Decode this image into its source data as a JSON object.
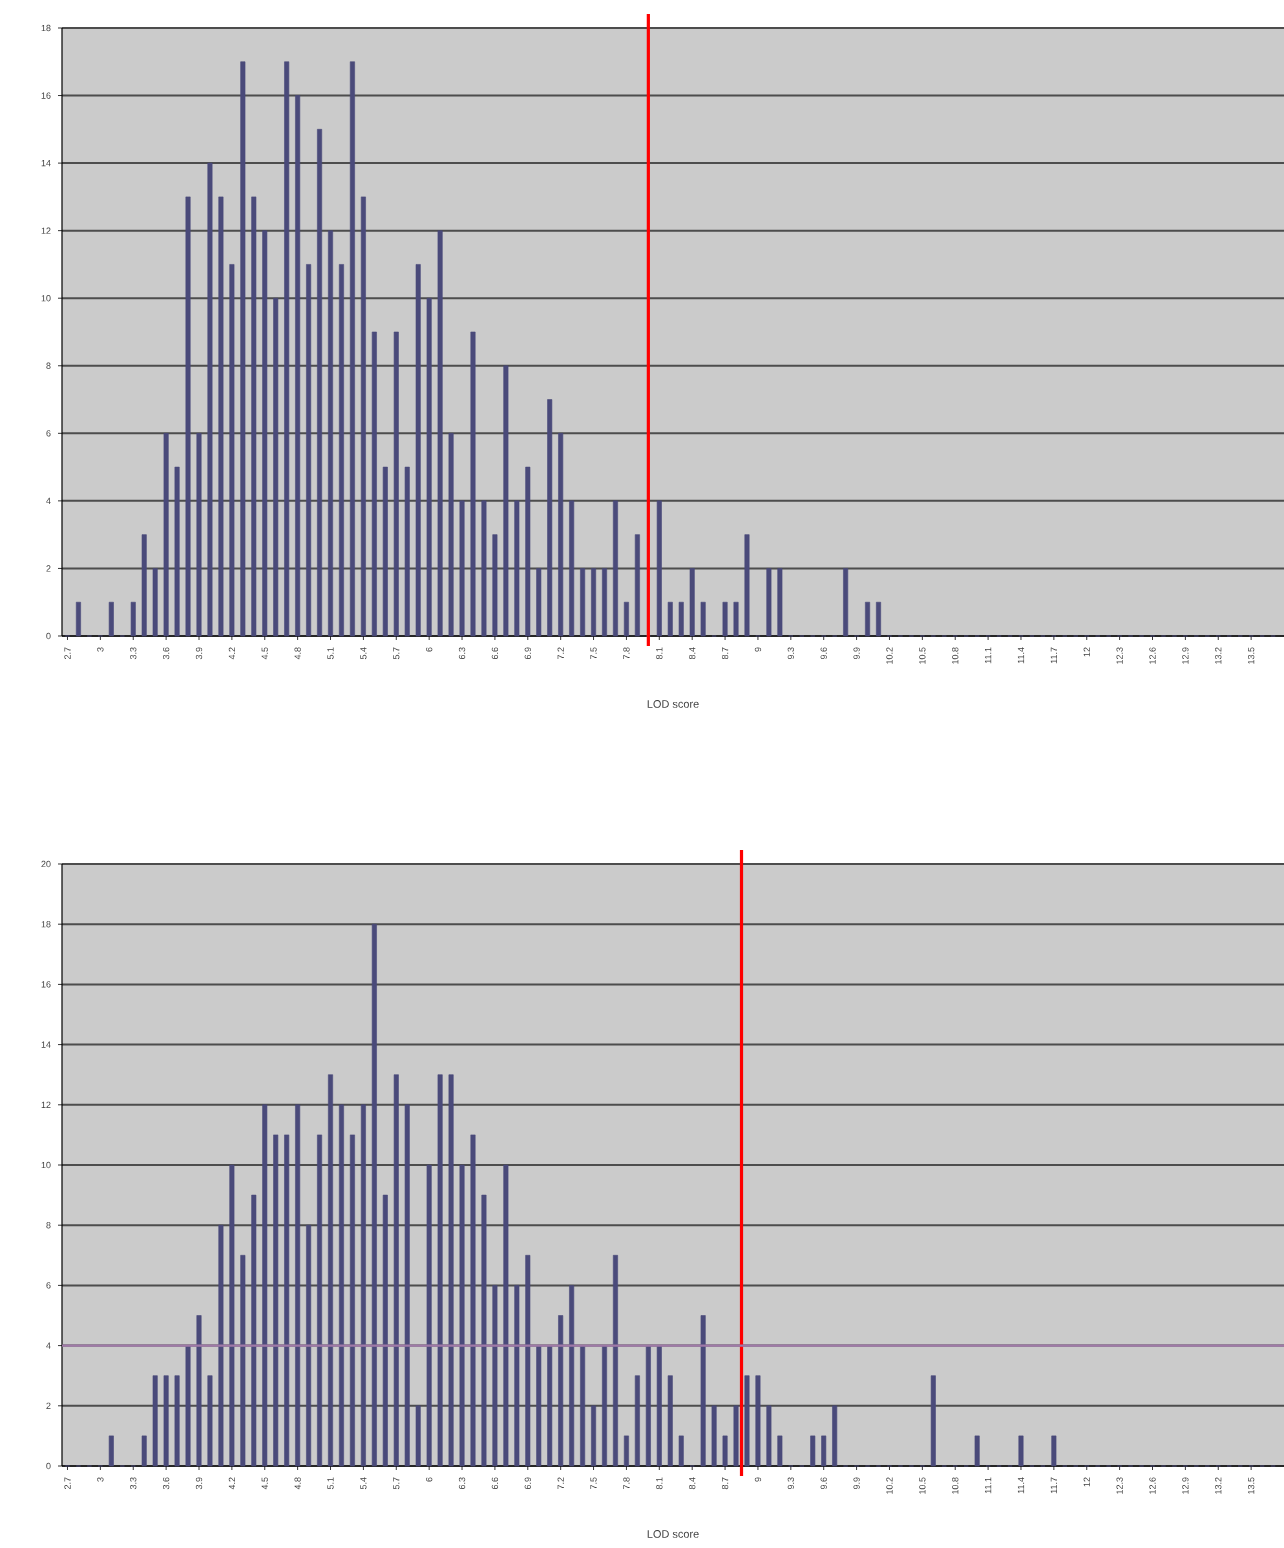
{
  "chart_data": [
    {
      "type": "bar",
      "xlabel": "LOD score",
      "x": [
        2.7,
        2.8,
        2.9,
        3,
        3.1,
        3.2,
        3.3,
        3.4,
        3.5,
        3.6,
        3.7,
        3.8,
        3.9,
        4,
        4.1,
        4.2,
        4.3,
        4.4,
        4.5,
        4.6,
        4.7,
        4.8,
        4.9,
        5,
        5.1,
        5.2,
        5.3,
        5.4,
        5.5,
        5.6,
        5.7,
        5.8,
        5.9,
        6,
        6.1,
        6.2,
        6.3,
        6.4,
        6.5,
        6.6,
        6.7,
        6.8,
        6.9,
        7,
        7.1,
        7.2,
        7.3,
        7.4,
        7.5,
        7.6,
        7.7,
        7.8,
        7.9,
        8,
        8.1,
        8.2,
        8.3,
        8.4,
        8.5,
        8.6,
        8.7,
        8.8,
        8.9,
        9,
        9.1,
        9.2,
        9.3,
        9.4,
        9.5,
        9.6,
        9.7,
        9.8,
        9.9,
        10,
        10.1,
        10.2,
        10.3,
        10.4,
        10.5,
        10.6,
        10.7,
        10.8,
        10.9,
        11,
        11.1,
        11.2,
        11.3,
        11.4,
        11.5,
        11.6,
        11.7,
        11.8,
        11.9,
        12,
        12.1,
        12.2,
        12.3,
        12.4,
        12.5,
        12.6,
        12.7,
        12.8,
        12.9,
        13,
        13.1,
        13.2,
        13.3,
        13.4,
        13.5,
        13.6,
        13.7
      ],
      "values": [
        0,
        1,
        0,
        0,
        1,
        0,
        1,
        3,
        2,
        6,
        5,
        13,
        6,
        14,
        13,
        11,
        17,
        13,
        12,
        10,
        17,
        16,
        11,
        15,
        12,
        11,
        17,
        13,
        9,
        5,
        9,
        5,
        11,
        10,
        12,
        6,
        4,
        9,
        4,
        3,
        8,
        4,
        5,
        2,
        7,
        6,
        4,
        2,
        2,
        2,
        4,
        1,
        3,
        0,
        4,
        1,
        1,
        2,
        1,
        0,
        1,
        1,
        3,
        0,
        2,
        2,
        0,
        0,
        0,
        0,
        0,
        2,
        0,
        1,
        1,
        0,
        0,
        0,
        0,
        0,
        0,
        0,
        0,
        0,
        0,
        0,
        0,
        0,
        0,
        0,
        0,
        0,
        0,
        0,
        0,
        0,
        0,
        0,
        0,
        0,
        0,
        0,
        0,
        0,
        0,
        0,
        0,
        0,
        0,
        0,
        0
      ],
      "color": "#4a4a7a",
      "xlim": [
        2.65,
        13.8
      ],
      "xticks": [
        2.7,
        3,
        3.3,
        3.6,
        3.9,
        4.2,
        4.5,
        4.8,
        5.1,
        5.4,
        5.7,
        6,
        6.3,
        6.6,
        6.9,
        7.2,
        7.5,
        7.8,
        8.1,
        8.4,
        8.7,
        9,
        9.3,
        9.6,
        9.9,
        10.2,
        10.5,
        10.8,
        11.1,
        11.4,
        11.7,
        12,
        12.3,
        12.6,
        12.9,
        13.2,
        13.5
      ],
      "ylim": [
        0,
        18
      ],
      "yticks": [
        0,
        2,
        4,
        6,
        8,
        10,
        12,
        14,
        16,
        18
      ],
      "grid": "y",
      "ref_lines": [
        {
          "axis": "x",
          "value": 8,
          "color": "#ff0000"
        }
      ]
    },
    {
      "type": "bar",
      "xlabel": "LOD score",
      "x": [
        2.7,
        2.8,
        2.9,
        3,
        3.1,
        3.2,
        3.3,
        3.4,
        3.5,
        3.6,
        3.7,
        3.8,
        3.9,
        4,
        4.1,
        4.2,
        4.3,
        4.4,
        4.5,
        4.6,
        4.7,
        4.8,
        4.9,
        5,
        5.1,
        5.2,
        5.3,
        5.4,
        5.5,
        5.6,
        5.7,
        5.8,
        5.9,
        6,
        6.1,
        6.2,
        6.3,
        6.4,
        6.5,
        6.6,
        6.7,
        6.8,
        6.9,
        7,
        7.1,
        7.2,
        7.3,
        7.4,
        7.5,
        7.6,
        7.7,
        7.8,
        7.9,
        8,
        8.1,
        8.2,
        8.3,
        8.4,
        8.5,
        8.6,
        8.7,
        8.8,
        8.9,
        9,
        9.1,
        9.2,
        9.3,
        9.4,
        9.5,
        9.6,
        9.7,
        9.8,
        9.9,
        10,
        10.1,
        10.2,
        10.3,
        10.4,
        10.5,
        10.6,
        10.7,
        10.8,
        10.9,
        11,
        11.1,
        11.2,
        11.3,
        11.4,
        11.5,
        11.6,
        11.7,
        11.8,
        11.9,
        12,
        12.1,
        12.2,
        12.3,
        12.4,
        12.5,
        12.6,
        12.7,
        12.8,
        12.9,
        13,
        13.1,
        13.2,
        13.3,
        13.4,
        13.5,
        13.6,
        13.7
      ],
      "values": [
        0,
        0,
        0,
        0,
        1,
        0,
        0,
        1,
        3,
        3,
        3,
        4,
        5,
        3,
        8,
        10,
        7,
        9,
        12,
        11,
        11,
        12,
        8,
        11,
        13,
        12,
        11,
        12,
        18,
        9,
        13,
        12,
        2,
        10,
        13,
        13,
        10,
        11,
        9,
        6,
        10,
        6,
        7,
        4,
        4,
        5,
        6,
        4,
        2,
        4,
        7,
        1,
        3,
        4,
        4,
        3,
        1,
        0,
        5,
        2,
        1,
        2,
        3,
        3,
        2,
        1,
        0,
        0,
        1,
        1,
        2,
        0,
        0,
        0,
        0,
        0,
        0,
        0,
        0,
        3,
        0,
        0,
        0,
        1,
        0,
        0,
        0,
        1,
        0,
        0,
        1,
        0,
        0,
        0,
        0,
        0,
        0,
        0,
        0,
        0,
        0,
        0,
        0,
        0,
        0,
        0,
        0,
        0,
        0,
        0,
        0
      ],
      "color": "#4a4a7a",
      "xlim": [
        2.65,
        13.8
      ],
      "xticks": [
        2.7,
        3,
        3.3,
        3.6,
        3.9,
        4.2,
        4.5,
        4.8,
        5.1,
        5.4,
        5.7,
        6,
        6.3,
        6.6,
        6.9,
        7.2,
        7.5,
        7.8,
        8.1,
        8.4,
        8.7,
        9,
        9.3,
        9.6,
        9.9,
        10.2,
        10.5,
        10.8,
        11.1,
        11.4,
        11.7,
        12,
        12.3,
        12.6,
        12.9,
        13.2,
        13.5
      ],
      "ylim": [
        0,
        20
      ],
      "yticks": [
        0,
        2,
        4,
        6,
        8,
        10,
        12,
        14,
        16,
        18,
        20
      ],
      "grid": "y",
      "ref_lines": [
        {
          "axis": "x",
          "value": 8.85,
          "color": "#ff0000"
        },
        {
          "axis": "y",
          "value": 4,
          "color": "#a07aa8"
        }
      ]
    }
  ]
}
